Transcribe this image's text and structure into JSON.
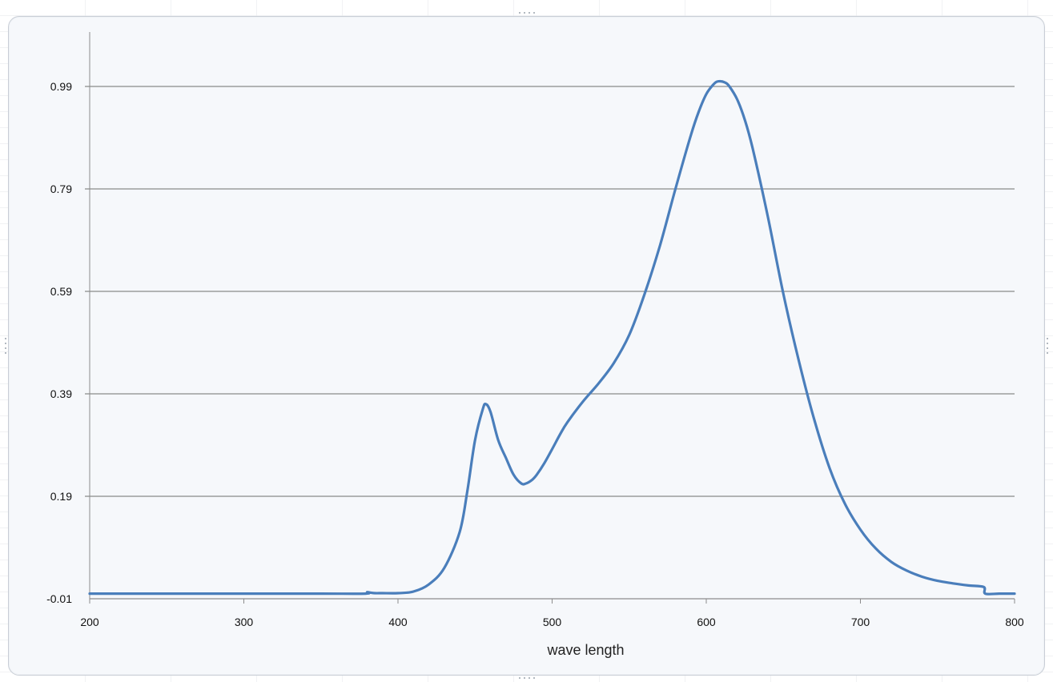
{
  "chart_data": {
    "type": "line",
    "title": "",
    "xlabel": "wave length",
    "ylabel": "",
    "xlim": [
      200,
      800
    ],
    "ylim": [
      -0.01,
      1.07
    ],
    "x_ticks": [
      "200",
      "300",
      "400",
      "500",
      "600",
      "700",
      "800"
    ],
    "y_ticks": [
      "-0.01",
      "0.19",
      "0.39",
      "0.59",
      "0.79",
      "0.99"
    ],
    "grid": "horizontal",
    "legend": "none",
    "series": [
      {
        "color": "#4a7ebb",
        "x": [
          200,
          250,
          300,
          350,
          379,
          380,
          382,
          385,
          390,
          400,
          410,
          420,
          430,
          440,
          445,
          450,
          455,
          457,
          460,
          465,
          470,
          475,
          480,
          483,
          487,
          490,
          495,
          500,
          505,
          510,
          520,
          530,
          540,
          550,
          560,
          570,
          580,
          590,
          595,
          600,
          605,
          608,
          612,
          615,
          620,
          625,
          630,
          640,
          650,
          660,
          670,
          680,
          690,
          700,
          710,
          720,
          730,
          740,
          750,
          760,
          770,
          780,
          781,
          790,
          800
        ],
        "y": [
          0.0,
          0.0,
          0.0,
          0.0,
          0.0,
          0.003,
          0.002,
          0.001,
          0.001,
          0.001,
          0.004,
          0.018,
          0.05,
          0.12,
          0.2,
          0.3,
          0.36,
          0.37,
          0.355,
          0.3,
          0.265,
          0.232,
          0.215,
          0.215,
          0.222,
          0.232,
          0.255,
          0.282,
          0.31,
          0.335,
          0.375,
          0.41,
          0.45,
          0.505,
          0.585,
          0.68,
          0.79,
          0.895,
          0.94,
          0.975,
          0.995,
          1.0,
          0.998,
          0.99,
          0.965,
          0.925,
          0.87,
          0.735,
          0.585,
          0.455,
          0.34,
          0.245,
          0.175,
          0.125,
          0.088,
          0.062,
          0.045,
          0.033,
          0.025,
          0.02,
          0.016,
          0.013,
          0.0,
          0.0,
          0.0
        ]
      }
    ]
  }
}
